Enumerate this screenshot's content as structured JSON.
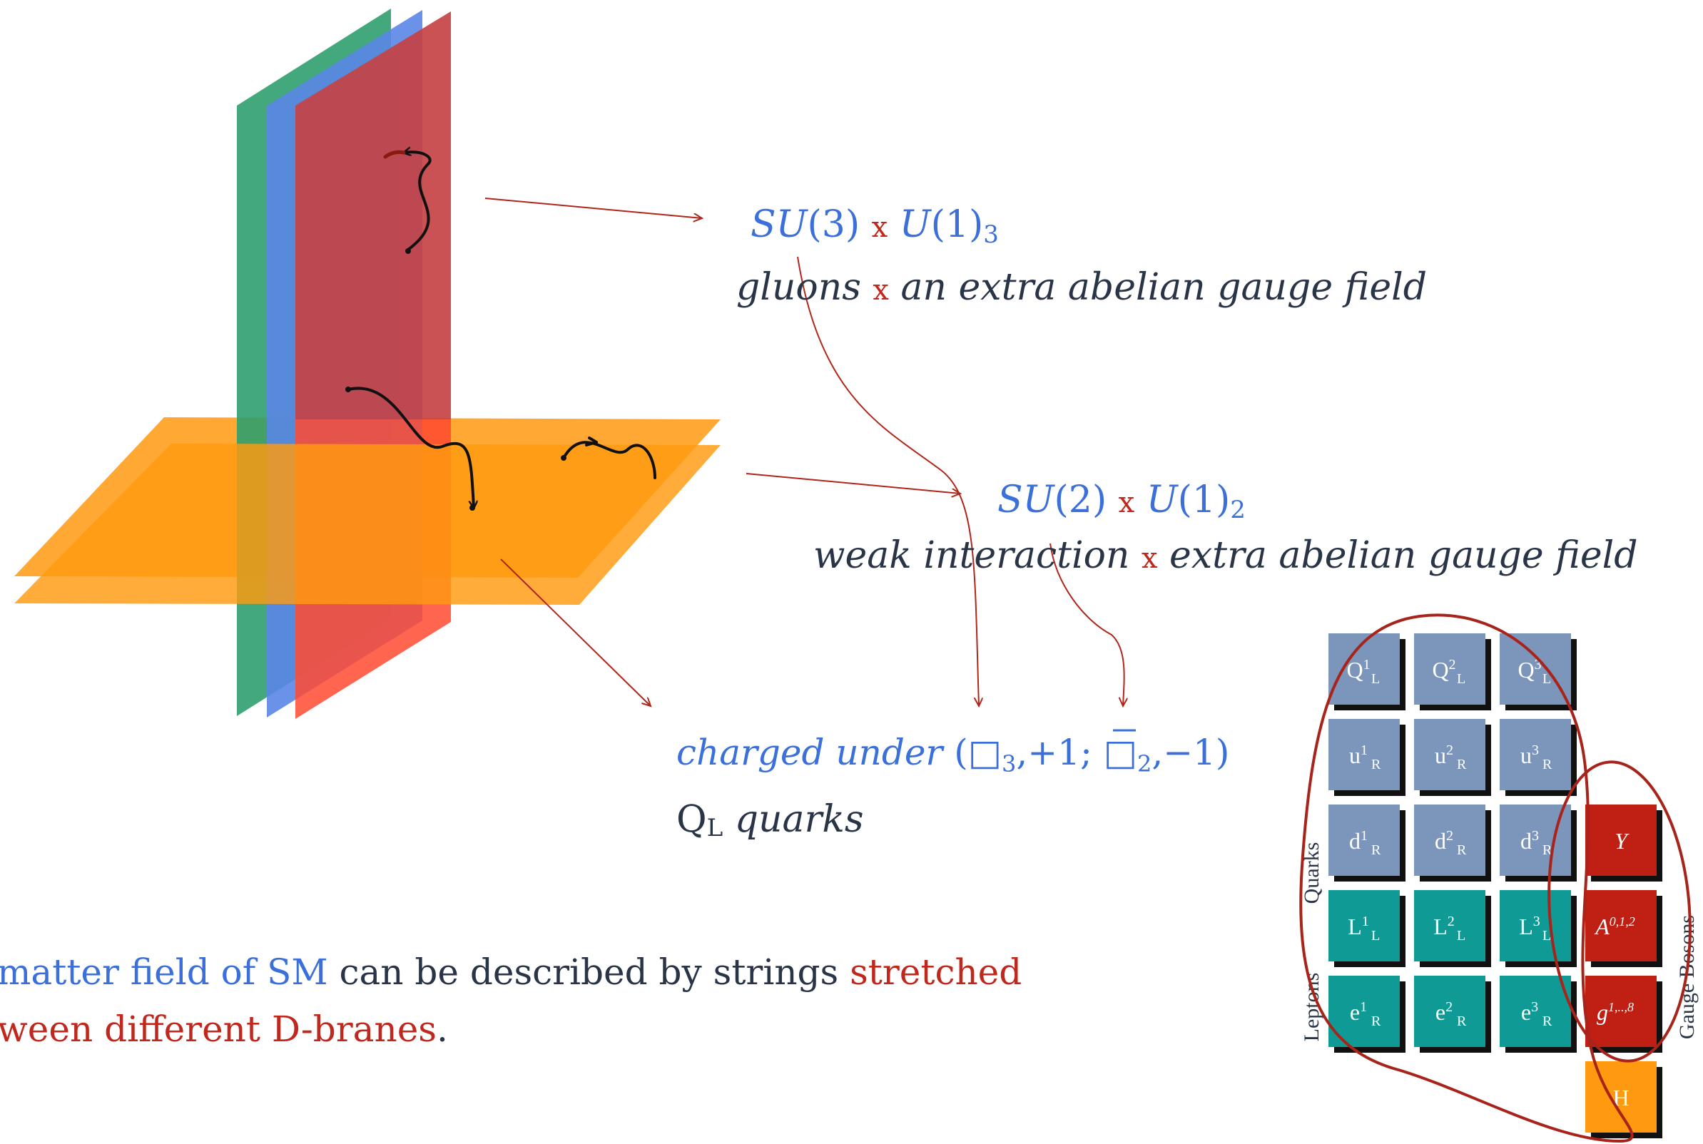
{
  "colors": {
    "brane_green": "#2fa06e",
    "brane_blue": "#5a86e6",
    "brane_red": "#ff4a30",
    "brane_orange": "#ff9a10",
    "accent_blue": "#3b6fd9",
    "accent_red": "#c0281e",
    "text_dark": "#2a3447",
    "quark_tile": "#7b95bb",
    "lepton_tile": "#0f9a96",
    "boson_tile": "#c01f13",
    "higgs_tile": "#ff9a10"
  },
  "su3": {
    "group_a": "SU",
    "group_a_num": "(3)",
    "times": "x",
    "group_b": "U",
    "group_b_num": "(1)",
    "group_b_sub": "3",
    "desc_a": "gluons",
    "desc_b": "an extra abelian gauge field"
  },
  "su2": {
    "group_a": "SU",
    "group_a_num": "(2)",
    "times": "x",
    "group_b": "U",
    "group_b_num": "(1)",
    "group_b_sub": "2",
    "desc_a": "weak interaction",
    "desc_b": "extra abelian gauge field"
  },
  "charged": {
    "prefix": "charged under",
    "open": "(",
    "box": "□",
    "sub3": "3",
    "charge1": ",+1;",
    "sub2": "2",
    "charge2": ",−1)",
    "particle": "Q",
    "particle_sub": "L",
    "particle_name": "quarks"
  },
  "caption": {
    "line1_blue": "matter field of SM",
    "line1_dark": "can be described by strings",
    "line1_red": "stretched",
    "line2_red": "ween different D-branes",
    "line2_end": "."
  },
  "table": {
    "labels": {
      "quarks": "Quarks",
      "leptons": "Leptons",
      "gauge_bosons": "Gauge Bosons"
    },
    "rows": [
      [
        {
          "base": "Q",
          "sup": "1",
          "sub": "L"
        },
        {
          "base": "Q",
          "sup": "2",
          "sub": "L"
        },
        {
          "base": "Q",
          "sup": "3",
          "sub": "L"
        }
      ],
      [
        {
          "base": "u",
          "sup": "1",
          "sub": "R"
        },
        {
          "base": "u",
          "sup": "2",
          "sub": "R"
        },
        {
          "base": "u",
          "sup": "3",
          "sub": "R"
        }
      ],
      [
        {
          "base": "d",
          "sup": "1",
          "sub": "R"
        },
        {
          "base": "d",
          "sup": "2",
          "sub": "R"
        },
        {
          "base": "d",
          "sup": "3",
          "sub": "R"
        }
      ],
      [
        {
          "base": "L",
          "sup": "1",
          "sub": "L"
        },
        {
          "base": "L",
          "sup": "2",
          "sub": "L"
        },
        {
          "base": "L",
          "sup": "3",
          "sub": "L"
        }
      ],
      [
        {
          "base": "e",
          "sup": "1",
          "sub": "R"
        },
        {
          "base": "e",
          "sup": "2",
          "sub": "R"
        },
        {
          "base": "e",
          "sup": "3",
          "sub": "R"
        }
      ]
    ],
    "bosons": [
      {
        "base": "Y",
        "sup": ""
      },
      {
        "base": "A",
        "sup": "0,1,2"
      },
      {
        "base": "g",
        "sup": "1,..,8"
      }
    ],
    "higgs": "H"
  }
}
